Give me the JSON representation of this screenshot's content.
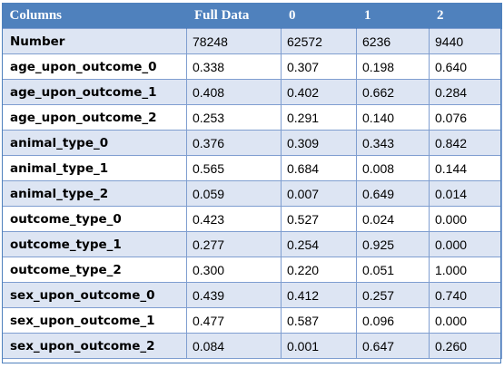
{
  "table": {
    "headers": [
      "Columns",
      "Full Data",
      "0",
      "1",
      "2"
    ],
    "rows": [
      {
        "label": "Number",
        "values": [
          "78248",
          "62572",
          "6236",
          "9440"
        ]
      },
      {
        "label": "age_upon_outcome_0",
        "values": [
          "0.338",
          "0.307",
          "0.198",
          "0.640"
        ]
      },
      {
        "label": "age_upon_outcome_1",
        "values": [
          "0.408",
          "0.402",
          "0.662",
          "0.284"
        ]
      },
      {
        "label": "age_upon_outcome_2",
        "values": [
          "0.253",
          "0.291",
          "0.140",
          "0.076"
        ]
      },
      {
        "label": "animal_type_0",
        "values": [
          "0.376",
          "0.309",
          "0.343",
          "0.842"
        ]
      },
      {
        "label": "animal_type_1",
        "values": [
          "0.565",
          "0.684",
          "0.008",
          "0.144"
        ]
      },
      {
        "label": "animal_type_2",
        "values": [
          "0.059",
          "0.007",
          "0.649",
          "0.014"
        ]
      },
      {
        "label": "outcome_type_0",
        "values": [
          "0.423",
          "0.527",
          "0.024",
          "0.000"
        ]
      },
      {
        "label": "outcome_type_1",
        "values": [
          "0.277",
          "0.254",
          "0.925",
          "0.000"
        ]
      },
      {
        "label": "outcome_type_2",
        "values": [
          "0.300",
          "0.220",
          "0.051",
          "1.000"
        ]
      },
      {
        "label": "sex_upon_outcome_0",
        "values": [
          "0.439",
          "0.412",
          "0.257",
          "0.740"
        ]
      },
      {
        "label": "sex_upon_outcome_1",
        "values": [
          "0.477",
          "0.587",
          "0.096",
          "0.000"
        ]
      },
      {
        "label": "sex_upon_outcome_2",
        "values": [
          "0.084",
          "0.001",
          "0.647",
          "0.260"
        ]
      }
    ]
  },
  "colors": {
    "header_bg": "#4f81bd",
    "header_text": "#ffffff",
    "band_row_bg": "#dde5f3",
    "plain_row_bg": "#ffffff",
    "grid_line": "#7f9ed0"
  }
}
